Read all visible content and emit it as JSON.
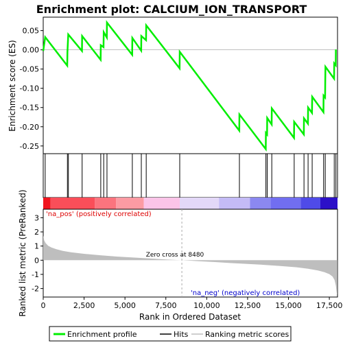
{
  "chart_data": {
    "type": "line",
    "title": "Enrichment plot: CALCIUM_ION_TRANSPORT",
    "xlabel": "Rank in Ordered Dataset",
    "ylabel_top": "Enrichment score (ES)",
    "ylabel_bottom": "Ranked list metric (PreRanked)",
    "xlim": [
      0,
      18000
    ],
    "x_ticks": [
      0,
      2500,
      5000,
      7500,
      10000,
      12500,
      15000,
      17500
    ],
    "x_tick_labels": [
      "0",
      "2,500",
      "5,000",
      "7,500",
      "10,000",
      "12,500",
      "15,000",
      "17,500"
    ],
    "es_ylim": [
      -0.27,
      0.085
    ],
    "es_ticks": [
      0.05,
      0.0,
      -0.05,
      -0.1,
      -0.15,
      -0.2,
      -0.25
    ],
    "es_tick_labels": [
      "0.05",
      "0.00",
      "-0.05",
      "-0.10",
      "-0.15",
      "-0.20",
      "-0.25"
    ],
    "metric_ylim": [
      -2.6,
      3.6
    ],
    "metric_ticks": [
      3,
      2,
      1,
      0,
      -1,
      -2
    ],
    "metric_tick_labels": [
      "3",
      "2",
      "1",
      "0",
      "-1",
      "-2"
    ],
    "hits": [
      120,
      1480,
      1540,
      2380,
      3520,
      3700,
      3900,
      5450,
      6000,
      6300,
      8350,
      12000,
      13620,
      13700,
      13980,
      15350,
      15950,
      16200,
      16450,
      17150,
      17250,
      17800,
      17900
    ],
    "es_points": [
      [
        0,
        -0.003
      ],
      [
        120,
        0.033
      ],
      [
        1470,
        -0.041
      ],
      [
        1480,
        -0.006
      ],
      [
        1530,
        0.04
      ],
      [
        2370,
        -0.003
      ],
      [
        2380,
        0.036
      ],
      [
        3510,
        -0.026
      ],
      [
        3520,
        0.012
      ],
      [
        3690,
        0.007
      ],
      [
        3700,
        0.046
      ],
      [
        3890,
        0.032
      ],
      [
        3900,
        0.071
      ],
      [
        5440,
        -0.013
      ],
      [
        5450,
        0.031
      ],
      [
        5990,
        -0.002
      ],
      [
        6000,
        0.036
      ],
      [
        6290,
        0.025
      ],
      [
        6300,
        0.064
      ],
      [
        8340,
        -0.048
      ],
      [
        8350,
        -0.005
      ],
      [
        11990,
        -0.21
      ],
      [
        12000,
        -0.168
      ],
      [
        13610,
        -0.258
      ],
      [
        13620,
        -0.216
      ],
      [
        13690,
        -0.22
      ],
      [
        13700,
        -0.177
      ],
      [
        13970,
        -0.194
      ],
      [
        13980,
        -0.152
      ],
      [
        15340,
        -0.229
      ],
      [
        15350,
        -0.187
      ],
      [
        15940,
        -0.22
      ],
      [
        15950,
        -0.178
      ],
      [
        16190,
        -0.192
      ],
      [
        16200,
        -0.15
      ],
      [
        16440,
        -0.164
      ],
      [
        16450,
        -0.122
      ],
      [
        17140,
        -0.162
      ],
      [
        17150,
        -0.119
      ],
      [
        17240,
        -0.124
      ],
      [
        17250,
        -0.085
      ],
      [
        17260,
        -0.044
      ],
      [
        17790,
        -0.075
      ],
      [
        17800,
        -0.035
      ],
      [
        17890,
        -0.04
      ],
      [
        17900,
        0.001
      ]
    ],
    "metric_curve": [
      [
        0,
        1.75
      ],
      [
        60,
        1.4
      ],
      [
        150,
        1.2
      ],
      [
        300,
        1.02
      ],
      [
        500,
        0.9
      ],
      [
        800,
        0.78
      ],
      [
        1200,
        0.66
      ],
      [
        1700,
        0.56
      ],
      [
        2500,
        0.45
      ],
      [
        3500,
        0.35
      ],
      [
        4500,
        0.26
      ],
      [
        5500,
        0.19
      ],
      [
        6500,
        0.12
      ],
      [
        7500,
        0.05
      ],
      [
        8480,
        0.0
      ],
      [
        9500,
        -0.07
      ],
      [
        10500,
        -0.13
      ],
      [
        11500,
        -0.2
      ],
      [
        12500,
        -0.26
      ],
      [
        13500,
        -0.33
      ],
      [
        14500,
        -0.41
      ],
      [
        15500,
        -0.5
      ],
      [
        16200,
        -0.6
      ],
      [
        16800,
        -0.72
      ],
      [
        17200,
        -0.84
      ],
      [
        17500,
        -0.98
      ],
      [
        17700,
        -1.15
      ],
      [
        17820,
        -1.4
      ],
      [
        17900,
        -1.8
      ],
      [
        17960,
        -2.35
      ],
      [
        17990,
        -2.4
      ]
    ],
    "color_bar_segments": [
      {
        "from": 0,
        "to": 450,
        "color": "#f0141e"
      },
      {
        "from": 450,
        "to": 3150,
        "color": "#fa4e59"
      },
      {
        "from": 3150,
        "to": 4450,
        "color": "#fb747e"
      },
      {
        "from": 4450,
        "to": 6150,
        "color": "#fc9ba3"
      },
      {
        "from": 6150,
        "to": 8350,
        "color": "#fbc4e8"
      },
      {
        "from": 8350,
        "to": 10750,
        "color": "#e3d8f8"
      },
      {
        "from": 10750,
        "to": 12650,
        "color": "#c4bbf6"
      },
      {
        "from": 12650,
        "to": 13900,
        "color": "#8b88f0"
      },
      {
        "from": 13900,
        "to": 15750,
        "color": "#716ef0"
      },
      {
        "from": 15750,
        "to": 16950,
        "color": "#4f4be8"
      },
      {
        "from": 16950,
        "to": 18000,
        "color": "#2c10c8"
      }
    ],
    "zero_cross_rank": 8480,
    "zero_cross_label": "Zero cross at 8480",
    "pos_label": "'na_pos' (positively correlated)",
    "neg_label": "'na_neg' (negatively correlated)",
    "legend": [
      "Enrichment profile",
      "Hits",
      "Ranking metric scores"
    ],
    "colors": {
      "es_line": "#00ee00",
      "hit": "#000000",
      "metric_fill": "#bebebe",
      "pos_label": "#dd0000",
      "neg_label": "#0000cc",
      "zero_line": "#aaaaaa"
    }
  }
}
